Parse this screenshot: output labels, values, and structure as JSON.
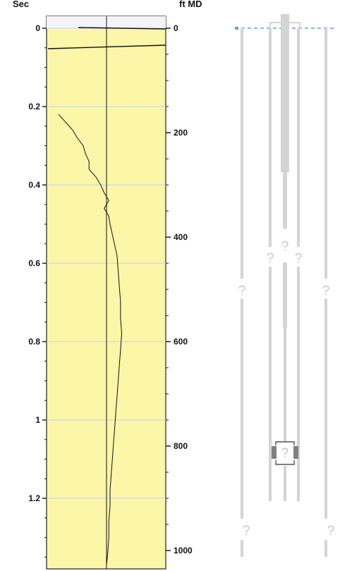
{
  "log_track": {
    "left_axis_label": "Sec",
    "right_axis_label": "ft MD",
    "left_ticks": [
      "0",
      "0.2",
      "0.4",
      "0.6",
      "0.8",
      "1",
      "1.2"
    ],
    "right_ticks": [
      "0",
      "200",
      "400",
      "600",
      "800",
      "1000"
    ],
    "track_color": "#fbf6a8"
  },
  "chart_data": {
    "type": "line",
    "title": "",
    "left_axis": {
      "label": "Sec",
      "range": [
        0,
        1.38
      ],
      "direction": "down"
    },
    "right_axis": {
      "label": "ft MD",
      "range": [
        0,
        1020
      ],
      "direction": "down"
    },
    "series": [
      {
        "t": [
          0.22,
          0.24,
          0.26,
          0.28,
          0.3,
          0.32,
          0.34,
          0.36,
          0.38,
          0.4,
          0.42,
          0.44,
          0.46,
          0.48,
          0.5,
          0.54,
          0.58,
          0.62,
          0.66,
          0.7,
          0.74,
          0.78,
          0.82,
          0.86,
          0.9,
          0.94,
          0.98,
          1.02,
          1.06,
          1.1,
          1.14,
          1.18,
          1.22,
          1.26,
          1.3,
          1.34,
          1.37
        ],
        "value": [
          -0.82,
          -0.7,
          -0.58,
          -0.5,
          -0.4,
          -0.36,
          -0.3,
          -0.3,
          -0.18,
          -0.1,
          -0.04,
          0.04,
          -0.04,
          0.04,
          0.06,
          0.12,
          0.18,
          0.2,
          0.22,
          0.24,
          0.24,
          0.26,
          0.24,
          0.22,
          0.2,
          0.18,
          0.16,
          0.14,
          0.12,
          0.1,
          0.08,
          0.06,
          0.06,
          0.04,
          0.04,
          0.02,
          0.0
        ]
      }
    ]
  },
  "well_schematic": {
    "unknown_marker": "?",
    "water_level_color": "#6c9bd8",
    "casing_color": "#d4d4d4",
    "packer_color": "#808080"
  }
}
